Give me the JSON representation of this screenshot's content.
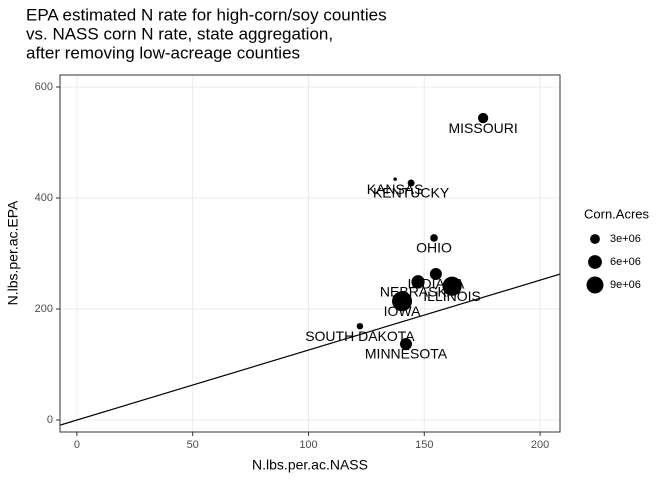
{
  "chart_data": {
    "type": "scatter",
    "title": [
      "EPA estimated N rate for high-corn/soy counties",
      "vs. NASS corn N rate, state aggregation,",
      "after removing low-acreage counties"
    ],
    "x_label": "N.lbs.per.ac.NASS",
    "y_label": "N.lbs.per.ac.EPA",
    "labels": [
      "MISSOURI",
      "KANSAS",
      "KENTUCKY",
      "OHIO",
      "INDIANA",
      "NEBRASKA",
      "ILLINOIS",
      "IOWA",
      "SOUTH DAKOTA",
      "MINNESOTA"
    ],
    "x": [
      175.4,
      137.4,
      144.3,
      154.2,
      155,
      147.3,
      162,
      140.4,
      122.2,
      142.1
    ],
    "y": [
      544,
      434,
      427,
      328,
      263,
      249,
      241,
      214,
      169,
      137
    ],
    "sizes": [
      3300000,
      400000,
      1500000,
      1800000,
      4500000,
      5500000,
      11500000,
      12500000,
      1300000,
      4500000
    ],
    "color": "#000000",
    "reference_line": {
      "intercept": 0,
      "slope": 1.26
    },
    "xlim": [
      -7.3,
      208.6
    ],
    "ylim": [
      -21.6,
      621.6
    ],
    "xticks": [
      0,
      50,
      100,
      150,
      200
    ],
    "yticks": [
      0,
      200,
      400,
      600
    ],
    "grid": true,
    "legend": {
      "title": "Corn.Acres",
      "position": "right",
      "sizes": [
        {
          "value": 3000000,
          "label": "3e+06"
        },
        {
          "value": 6000000,
          "label": "6e+06"
        },
        {
          "value": 9000000,
          "label": "9e+06"
        }
      ]
    }
  }
}
